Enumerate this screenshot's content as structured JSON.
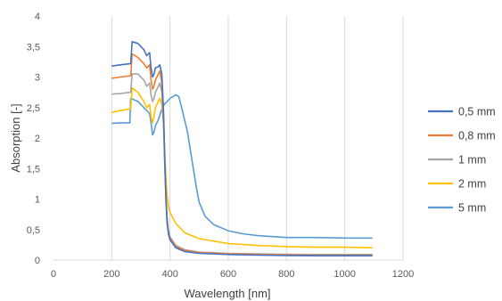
{
  "chart_data": {
    "type": "line",
    "title": "",
    "xlabel": "Wavelength [nm]",
    "ylabel": "Absorption [-]",
    "xlim": [
      0,
      1200
    ],
    "ylim": [
      0,
      4
    ],
    "x_ticks": [
      0,
      200,
      400,
      600,
      800,
      1000,
      1200
    ],
    "x_tick_labels": [
      "0",
      "200",
      "400",
      "600",
      "800",
      "1000",
      "1200"
    ],
    "y_ticks": [
      0,
      0.5,
      1,
      1.5,
      2,
      2.5,
      3,
      3.5,
      4
    ],
    "y_tick_labels": [
      "0",
      "0,5",
      "1",
      "1,5",
      "2",
      "2,5",
      "3",
      "3,5",
      "4"
    ],
    "grid": "vertical",
    "legend_position": "right",
    "series": [
      {
        "name": "0,5 mm",
        "color": "#4472C4",
        "points": [
          [
            200,
            3.18
          ],
          [
            230,
            3.2
          ],
          [
            265,
            3.22
          ],
          [
            270,
            3.58
          ],
          [
            290,
            3.55
          ],
          [
            310,
            3.45
          ],
          [
            320,
            3.35
          ],
          [
            330,
            3.4
          ],
          [
            335,
            3.15
          ],
          [
            340,
            3.0
          ],
          [
            345,
            3.05
          ],
          [
            350,
            3.15
          ],
          [
            360,
            3.17
          ],
          [
            365,
            3.2
          ],
          [
            372,
            3.05
          ],
          [
            378,
            2.4
          ],
          [
            382,
            1.6
          ],
          [
            386,
            1.0
          ],
          [
            390,
            0.6
          ],
          [
            395,
            0.42
          ],
          [
            400,
            0.33
          ],
          [
            420,
            0.2
          ],
          [
            450,
            0.14
          ],
          [
            500,
            0.11
          ],
          [
            600,
            0.09
          ],
          [
            700,
            0.08
          ],
          [
            800,
            0.075
          ],
          [
            900,
            0.07
          ],
          [
            1000,
            0.07
          ],
          [
            1095,
            0.07
          ]
        ]
      },
      {
        "name": "0,8 mm",
        "color": "#ED7D31",
        "points": [
          [
            200,
            2.98
          ],
          [
            230,
            3.0
          ],
          [
            265,
            3.02
          ],
          [
            270,
            3.38
          ],
          [
            290,
            3.32
          ],
          [
            310,
            3.22
          ],
          [
            320,
            3.15
          ],
          [
            330,
            3.2
          ],
          [
            335,
            2.95
          ],
          [
            340,
            2.8
          ],
          [
            345,
            2.85
          ],
          [
            350,
            2.95
          ],
          [
            360,
            3.05
          ],
          [
            365,
            3.1
          ],
          [
            372,
            2.9
          ],
          [
            378,
            2.3
          ],
          [
            382,
            1.6
          ],
          [
            386,
            1.05
          ],
          [
            390,
            0.65
          ],
          [
            395,
            0.45
          ],
          [
            400,
            0.36
          ],
          [
            420,
            0.22
          ],
          [
            450,
            0.16
          ],
          [
            500,
            0.12
          ],
          [
            600,
            0.1
          ],
          [
            700,
            0.09
          ],
          [
            800,
            0.085
          ],
          [
            900,
            0.08
          ],
          [
            1000,
            0.08
          ],
          [
            1095,
            0.08
          ]
        ]
      },
      {
        "name": "1 mm",
        "color": "#A5A5A5",
        "points": [
          [
            200,
            2.72
          ],
          [
            230,
            2.73
          ],
          [
            265,
            2.75
          ],
          [
            270,
            3.05
          ],
          [
            290,
            3.05
          ],
          [
            310,
            2.95
          ],
          [
            320,
            2.85
          ],
          [
            330,
            2.9
          ],
          [
            335,
            2.7
          ],
          [
            340,
            2.6
          ],
          [
            345,
            2.65
          ],
          [
            350,
            2.75
          ],
          [
            360,
            2.85
          ],
          [
            365,
            2.9
          ],
          [
            372,
            2.75
          ],
          [
            378,
            2.2
          ],
          [
            382,
            1.55
          ],
          [
            386,
            1.05
          ],
          [
            390,
            0.68
          ],
          [
            395,
            0.48
          ],
          [
            400,
            0.38
          ],
          [
            420,
            0.24
          ],
          [
            450,
            0.17
          ],
          [
            500,
            0.13
          ],
          [
            600,
            0.11
          ],
          [
            700,
            0.1
          ],
          [
            800,
            0.095
          ],
          [
            900,
            0.09
          ],
          [
            1000,
            0.09
          ],
          [
            1095,
            0.09
          ]
        ]
      },
      {
        "name": "2 mm",
        "color": "#FFC000",
        "points": [
          [
            200,
            2.42
          ],
          [
            230,
            2.45
          ],
          [
            265,
            2.48
          ],
          [
            270,
            2.82
          ],
          [
            290,
            2.75
          ],
          [
            310,
            2.6
          ],
          [
            320,
            2.5
          ],
          [
            330,
            2.55
          ],
          [
            335,
            2.35
          ],
          [
            340,
            2.25
          ],
          [
            345,
            2.35
          ],
          [
            350,
            2.5
          ],
          [
            360,
            2.6
          ],
          [
            365,
            2.65
          ],
          [
            372,
            2.55
          ],
          [
            378,
            2.2
          ],
          [
            382,
            1.75
          ],
          [
            386,
            1.35
          ],
          [
            390,
            1.05
          ],
          [
            395,
            0.88
          ],
          [
            400,
            0.78
          ],
          [
            420,
            0.6
          ],
          [
            450,
            0.45
          ],
          [
            500,
            0.35
          ],
          [
            600,
            0.27
          ],
          [
            700,
            0.24
          ],
          [
            800,
            0.22
          ],
          [
            900,
            0.21
          ],
          [
            1000,
            0.21
          ],
          [
            1095,
            0.2
          ]
        ]
      },
      {
        "name": "5 mm",
        "color": "#5B9BD5",
        "points": [
          [
            200,
            2.24
          ],
          [
            230,
            2.25
          ],
          [
            262,
            2.25
          ],
          [
            265,
            2.65
          ],
          [
            290,
            2.6
          ],
          [
            310,
            2.5
          ],
          [
            320,
            2.45
          ],
          [
            330,
            2.4
          ],
          [
            335,
            2.25
          ],
          [
            340,
            2.05
          ],
          [
            345,
            2.1
          ],
          [
            350,
            2.2
          ],
          [
            360,
            2.3
          ],
          [
            370,
            2.45
          ],
          [
            380,
            2.55
          ],
          [
            400,
            2.65
          ],
          [
            420,
            2.71
          ],
          [
            430,
            2.68
          ],
          [
            440,
            2.5
          ],
          [
            450,
            2.3
          ],
          [
            460,
            2.1
          ],
          [
            470,
            1.8
          ],
          [
            480,
            1.5
          ],
          [
            490,
            1.2
          ],
          [
            500,
            0.95
          ],
          [
            520,
            0.72
          ],
          [
            550,
            0.58
          ],
          [
            600,
            0.48
          ],
          [
            650,
            0.43
          ],
          [
            700,
            0.4
          ],
          [
            800,
            0.37
          ],
          [
            900,
            0.37
          ],
          [
            1000,
            0.36
          ],
          [
            1095,
            0.36
          ]
        ]
      }
    ]
  }
}
